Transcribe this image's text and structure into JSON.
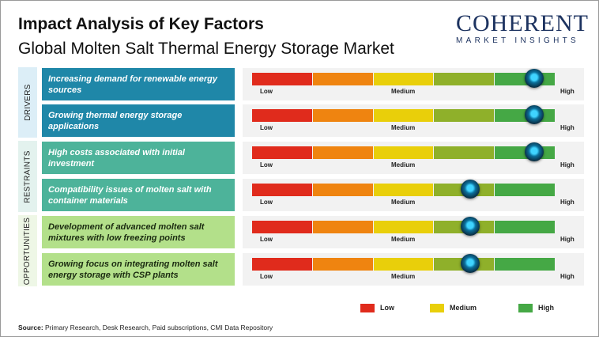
{
  "chart_data": {
    "type": "gauge-bars",
    "title": "Impact Analysis of Key Factors",
    "subtitle": "Global Molten Salt Thermal Energy Storage Market",
    "scale_labels": {
      "low": "Low",
      "medium": "Medium",
      "high": "High"
    },
    "segment_colors": [
      "#e02b1c",
      "#ef8410",
      "#e9cf0a",
      "#8fb02a",
      "#45a845"
    ],
    "groups": [
      {
        "name": "DRIVERS",
        "color": "#1f87a8",
        "bg": "#dceef7",
        "text_color": "#ffffff",
        "factors": [
          {
            "label": "Increasing demand for renewable energy sources",
            "level": 0.93
          },
          {
            "label": "Growing thermal energy storage applications",
            "level": 0.93
          }
        ]
      },
      {
        "name": "RESTRAINTS",
        "color": "#4db39a",
        "bg": "#e3f2ee",
        "text_color": "#ffffff",
        "factors": [
          {
            "label": "High costs associated with initial investment",
            "level": 0.93
          },
          {
            "label": "Compatibility issues of molten salt with container materials",
            "level": 0.72
          }
        ]
      },
      {
        "name": "OPPORTUNITIES",
        "color": "#b3e08a",
        "bg": "#eef7e6",
        "text_color": "#1a2a10",
        "factors": [
          {
            "label": "Development of advanced molten salt mixtures with low freezing points",
            "level": 0.72
          },
          {
            "label": "Growing focus on integrating molten salt energy storage with CSP plants",
            "level": 0.72
          }
        ]
      }
    ],
    "legend": [
      {
        "label": "Low",
        "color": "#e02b1c"
      },
      {
        "label": "Medium",
        "color": "#e9cf0a"
      },
      {
        "label": "High",
        "color": "#45a845"
      }
    ],
    "legend_placement": "bottom-right"
  },
  "logo": {
    "text_top": "COHERENT",
    "text_bottom": "MARKET INSIGHTS"
  },
  "source": {
    "label": "Source:",
    "text": " Primary Research, Desk Research, Paid subscriptions, CMI Data Repository"
  }
}
